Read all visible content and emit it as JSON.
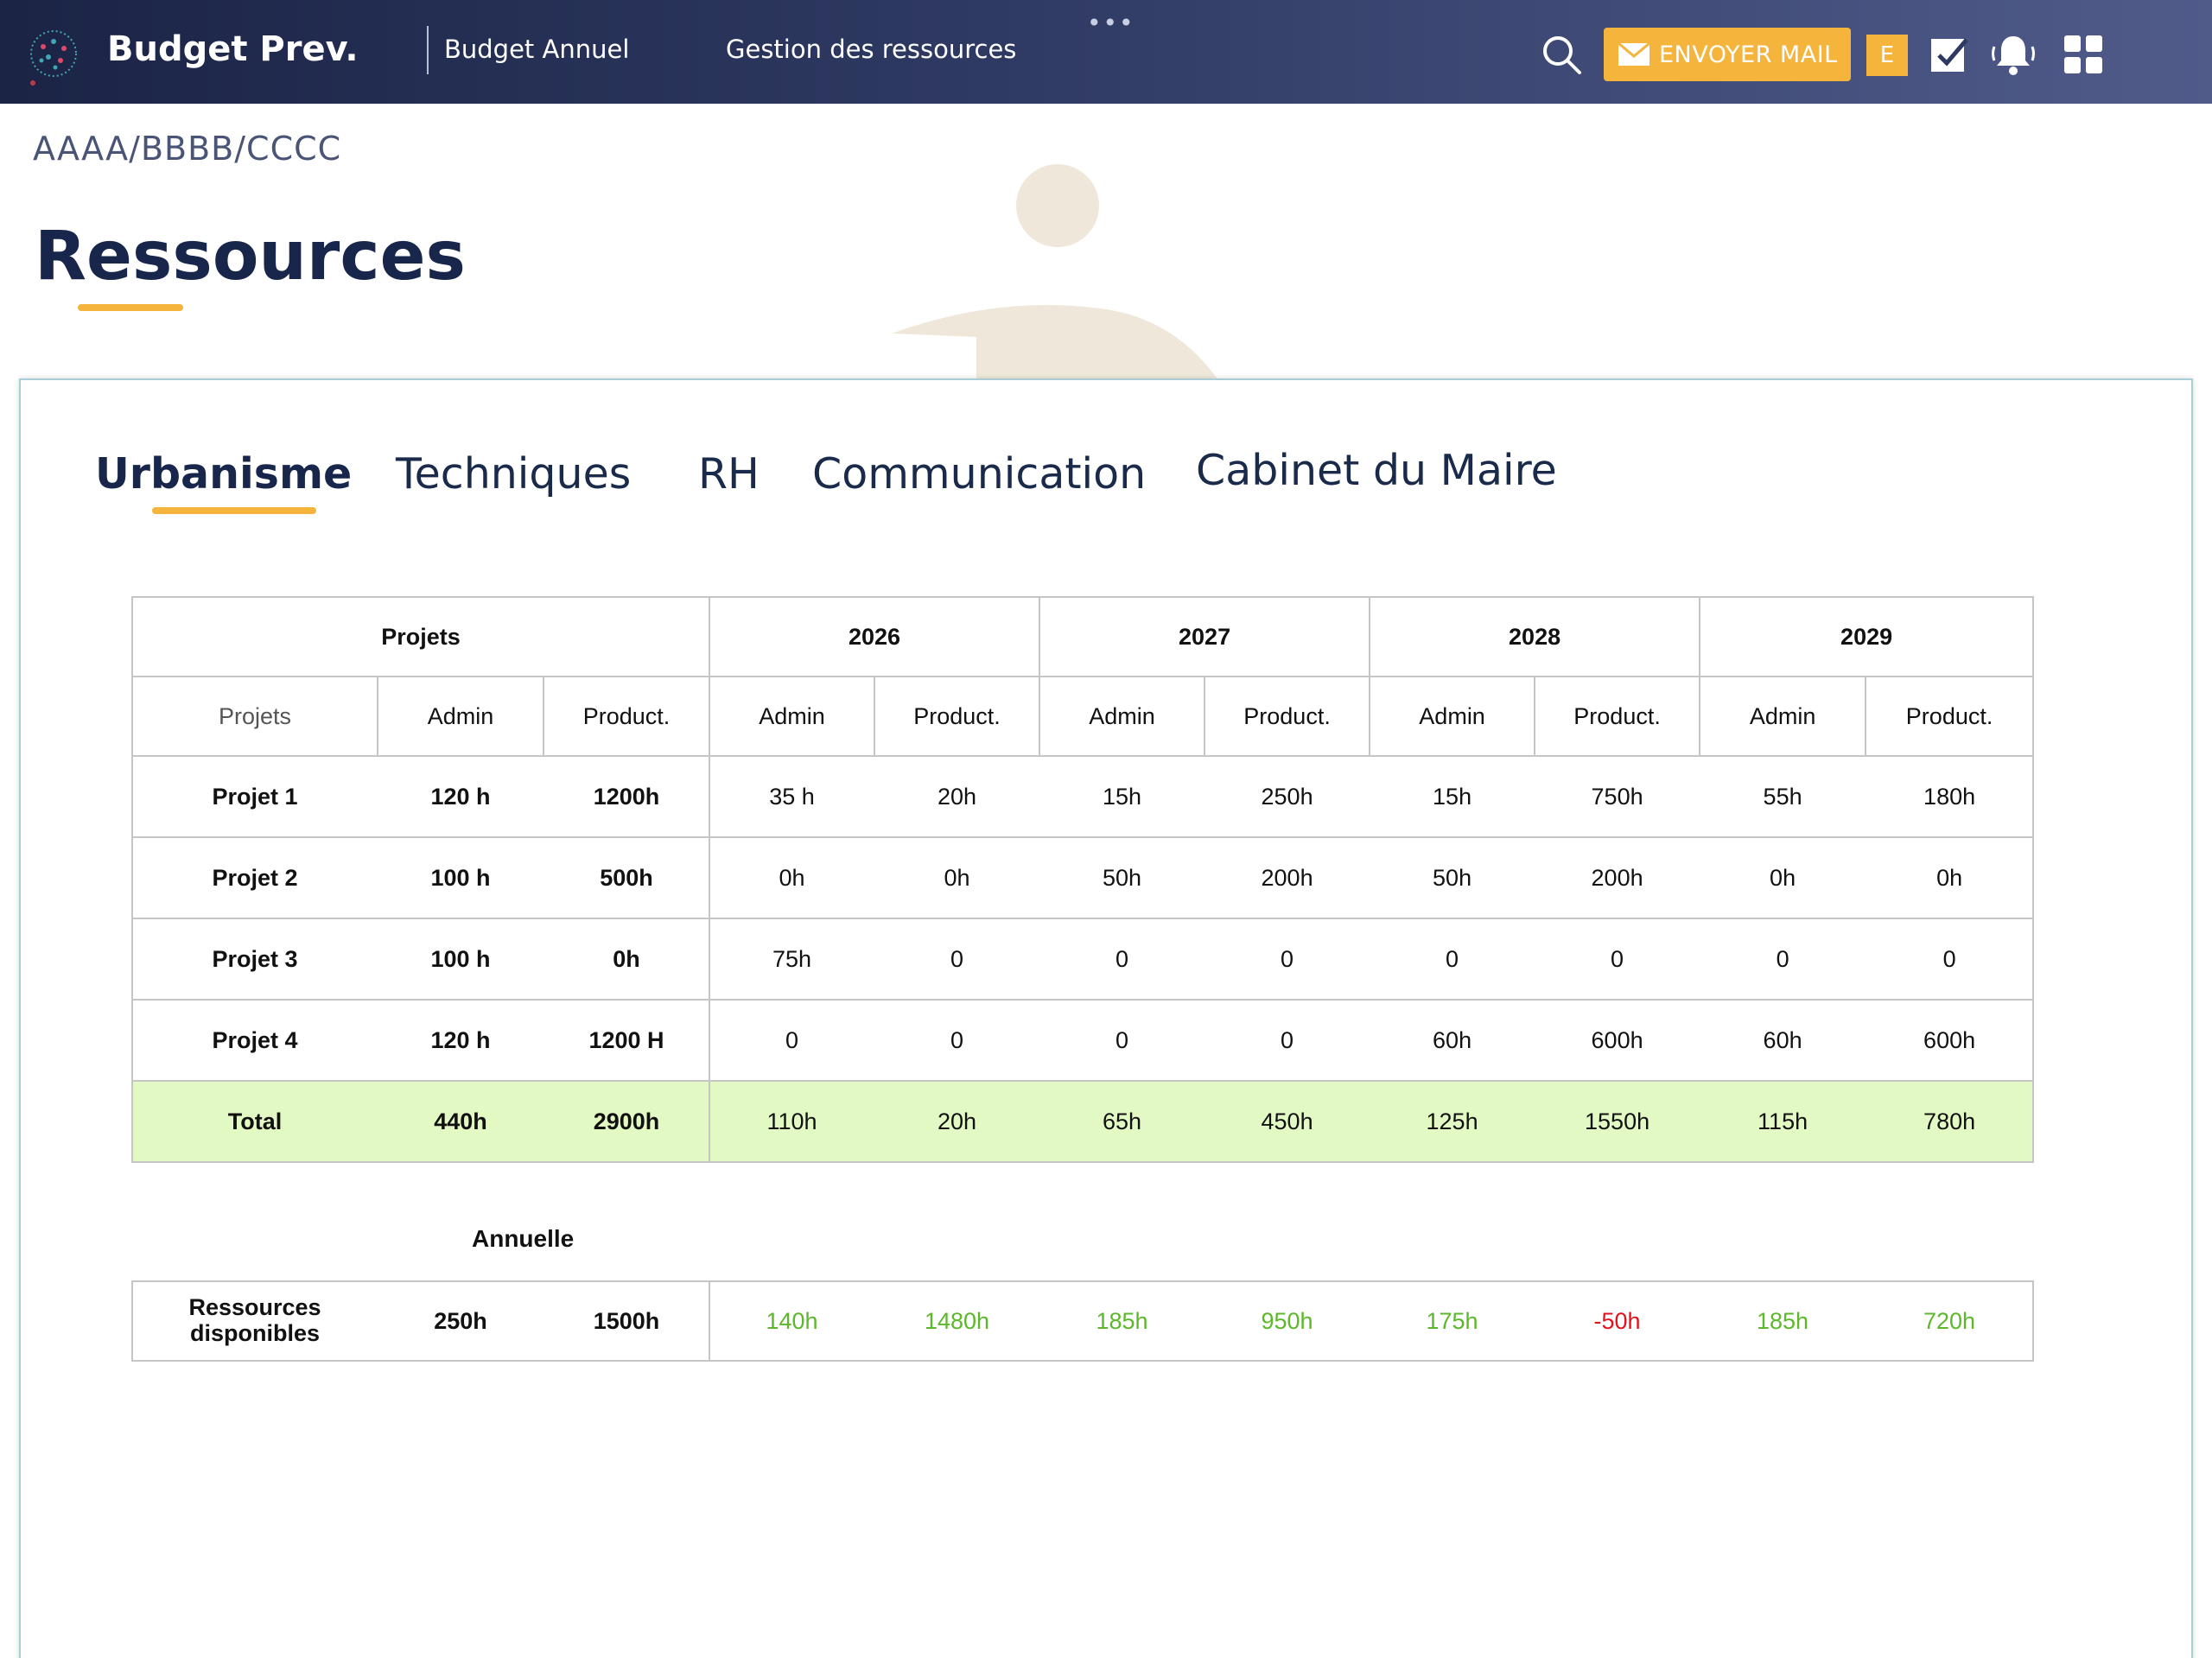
{
  "header": {
    "app_title": "Budget Prev.",
    "nav": [
      "Budget Annuel",
      "Gestion des ressources"
    ],
    "more_label": "•••",
    "mail_button": "ENVOYER  MAIL",
    "user_initial": "E"
  },
  "breadcrumb": "AAAA/BBBB/CCCC",
  "page_title": "Ressources",
  "tabs": [
    "Urbanisme",
    "Techniques",
    "RH",
    "Communication",
    "Cabinet du Maire"
  ],
  "active_tab": "Urbanisme",
  "table": {
    "group_headers": [
      "Projets",
      "2026",
      "2027",
      "2028",
      "2029"
    ],
    "sub_headers": [
      "Projets",
      "Admin",
      "Product.",
      "Admin",
      "Product.",
      "Admin",
      "Product.",
      "Admin",
      "Product.",
      "Admin",
      "Product."
    ],
    "rows": [
      [
        "Projet 1",
        "120 h",
        "1200h",
        "35 h",
        "20h",
        "15h",
        "250h",
        "15h",
        "750h",
        "55h",
        "180h"
      ],
      [
        "Projet 2",
        "100 h",
        "500h",
        "0h",
        "0h",
        "50h",
        "200h",
        "50h",
        "200h",
        "0h",
        "0h"
      ],
      [
        "Projet 3",
        "100 h",
        "0h",
        "75h",
        "0",
        "0",
        "0",
        "0",
        "0",
        "0",
        "0"
      ],
      [
        "Projet 4",
        "120 h",
        "1200 H",
        "0",
        "0",
        "0",
        "0",
        "60h",
        "600h",
        "60h",
        "600h"
      ]
    ],
    "total": [
      "Total",
      "440h",
      "2900h",
      "110h",
      "20h",
      "65h",
      "450h",
      "125h",
      "1550h",
      "115h",
      "780h"
    ]
  },
  "annuelle_label": "Annuelle",
  "resources": {
    "label": "Ressources disponibles",
    "values": [
      "250h",
      "1500h",
      "140h",
      "1480h",
      "185h",
      "950h",
      "175h",
      "-50h",
      "185h",
      "720h"
    ]
  },
  "colors": {
    "accent": "#f5b43c",
    "positive": "#5cb82a",
    "negative": "#e1141c",
    "total_bg": "#e3f9c4"
  }
}
